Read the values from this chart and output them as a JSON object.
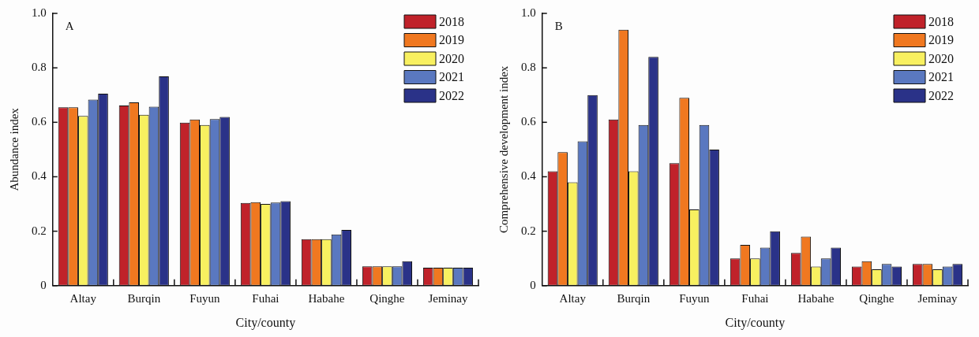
{
  "chart_data": [
    {
      "type": "bar",
      "title": "A",
      "xlabel": "City/county",
      "ylabel": "Abundance index",
      "categories": [
        "Altay",
        "Burqin",
        "Fuyun",
        "Fuhai",
        "Habahe",
        "Qinghe",
        "Jeminay"
      ],
      "series": [
        {
          "name": "2018",
          "color": "#c0222a",
          "values": [
            0.655,
            0.662,
            0.599,
            0.304,
            0.171,
            0.071,
            0.066
          ]
        },
        {
          "name": "2019",
          "color": "#f07820",
          "values": [
            0.655,
            0.673,
            0.61,
            0.307,
            0.171,
            0.071,
            0.066
          ]
        },
        {
          "name": "2020",
          "color": "#f8f060",
          "values": [
            0.623,
            0.628,
            0.59,
            0.3,
            0.171,
            0.071,
            0.066
          ]
        },
        {
          "name": "2021",
          "color": "#5a78c0",
          "values": [
            0.683,
            0.657,
            0.612,
            0.305,
            0.188,
            0.071,
            0.066
          ]
        },
        {
          "name": "2022",
          "color": "#2a3288",
          "values": [
            0.705,
            0.769,
            0.62,
            0.31,
            0.205,
            0.09,
            0.066
          ]
        }
      ],
      "ylim": [
        0,
        1
      ],
      "yticks": [
        0,
        {
          "value": 0.2,
          "label": "0.2"
        },
        {
          "value": 0.4,
          "label": "0.4"
        },
        {
          "value": 0.6,
          "label": "0.6"
        },
        {
          "value": 0.8,
          "label": "0.8"
        },
        {
          "value": 1,
          "label": "1.0"
        }
      ],
      "grid": false,
      "legend": "top right"
    },
    {
      "type": "bar",
      "title": "B",
      "xlabel": "City/county",
      "ylabel": "Comprehensive development index",
      "categories": [
        "Altay",
        "Burqin",
        "Fuyun",
        "Fuhai",
        "Habahe",
        "Qinghe",
        "Jeminay"
      ],
      "series": [
        {
          "name": "2018",
          "color": "#c0222a",
          "values": [
            0.42,
            0.61,
            0.45,
            0.1,
            0.12,
            0.07,
            0.08
          ]
        },
        {
          "name": "2019",
          "color": "#f07820",
          "values": [
            0.49,
            0.94,
            0.69,
            0.15,
            0.18,
            0.09,
            0.08
          ]
        },
        {
          "name": "2020",
          "color": "#f8f060",
          "values": [
            0.38,
            0.42,
            0.28,
            0.1,
            0.07,
            0.06,
            0.06
          ]
        },
        {
          "name": "2021",
          "color": "#5a78c0",
          "values": [
            0.53,
            0.59,
            0.59,
            0.14,
            0.1,
            0.08,
            0.07
          ]
        },
        {
          "name": "2022",
          "color": "#2a3288",
          "values": [
            0.7,
            0.84,
            0.5,
            0.2,
            0.14,
            0.07,
            0.08
          ]
        }
      ],
      "ylim": [
        0,
        1
      ],
      "yticks": [
        0,
        {
          "value": 0.2,
          "label": "0.2"
        },
        {
          "value": 0.4,
          "label": "0.4"
        },
        {
          "value": 0.6,
          "label": "0.6"
        },
        {
          "value": 0.8,
          "label": "0.8"
        },
        {
          "value": 1,
          "label": "1.0"
        }
      ],
      "grid": false,
      "legend": "top right"
    }
  ]
}
